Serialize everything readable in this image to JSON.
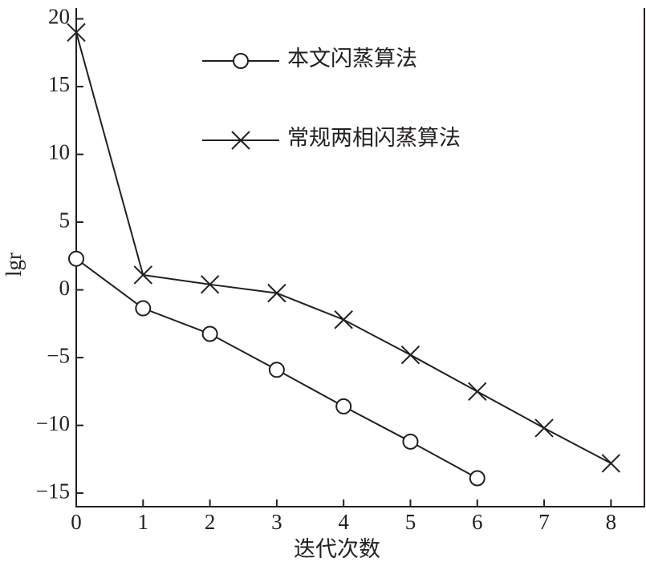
{
  "chart_data": {
    "type": "line",
    "xlabel": "迭代次数",
    "ylabel": "lgr",
    "xlim": [
      0,
      8.5
    ],
    "ylim": [
      -16,
      20.8
    ],
    "xticks": [
      0,
      1,
      2,
      3,
      4,
      5,
      6,
      7,
      8
    ],
    "yticks": [
      {
        "value": -15,
        "label": "−15"
      },
      {
        "value": -10,
        "label": "−10"
      },
      {
        "value": -5,
        "label": "−5"
      },
      0,
      5,
      10,
      15,
      20
    ],
    "series": [
      {
        "name": "本文闪蒸算法",
        "color": "#231f20",
        "marker": "circle",
        "x": [
          0,
          1,
          2,
          3,
          4,
          5,
          6
        ],
        "values": [
          2.3,
          -1.36,
          -3.25,
          -5.9,
          -8.6,
          -11.2,
          -13.9
        ]
      },
      {
        "name": "常规两相闪蒸算法",
        "color": "#231f20",
        "marker": "cross",
        "x": [
          0,
          1,
          2,
          3,
          4,
          5,
          6,
          7,
          8
        ],
        "values": [
          19.0,
          1.1,
          0.4,
          -0.24,
          -2.2,
          -4.8,
          -7.5,
          -10.2,
          -12.8
        ]
      }
    ]
  }
}
